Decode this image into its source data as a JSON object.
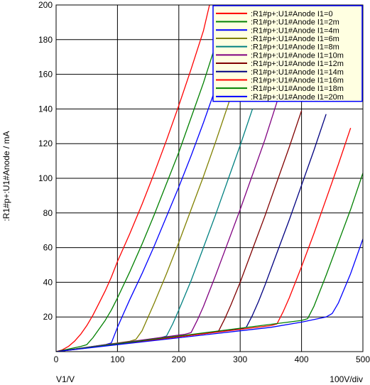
{
  "chart_data": {
    "type": "line",
    "ylabel": ":R1#p+:U1#Anode / mA",
    "xlabel": "V1/V",
    "xscale_label": "100V/div",
    "xlim": [
      0,
      500
    ],
    "ylim": [
      0,
      200
    ],
    "xticks": [
      0,
      100,
      200,
      300,
      400,
      500
    ],
    "yticks": [
      20,
      40,
      60,
      80,
      100,
      120,
      140,
      160,
      180,
      200
    ],
    "grid": true,
    "legend_position": "top-right",
    "colors": {
      "background": "#ffffff",
      "grid": "#000000",
      "legend_bg": "#ffffe1",
      "legend_border": "#0000ff"
    },
    "series": [
      {
        "name": ":R1#p+:U1#Anode I1=0",
        "color": "#ff0000",
        "x": [
          0,
          10,
          20,
          30,
          40,
          50,
          60,
          70,
          80,
          90,
          100,
          120,
          140,
          160,
          180,
          200,
          220,
          240,
          250
        ],
        "y": [
          0,
          1,
          3,
          6,
          10,
          15,
          21,
          28,
          35,
          43,
          52,
          68,
          85,
          103,
          122,
          142,
          163,
          185,
          200
        ]
      },
      {
        "name": ":R1#p+:U1#Anode I1=2m",
        "color": "#008000",
        "x": [
          0,
          40,
          50,
          60,
          70,
          80,
          90,
          100,
          120,
          140,
          160,
          180,
          200,
          220,
          240,
          260,
          280,
          290
        ],
        "y": [
          0,
          3,
          4,
          8,
          13,
          18,
          24,
          31,
          46,
          62,
          79,
          97,
          115,
          135,
          155,
          177,
          200,
          211
        ]
      },
      {
        "name": ":R1#p+:U1#Anode I1=4m",
        "color": "#0000ff",
        "x": [
          0,
          80,
          90,
          100,
          110,
          120,
          140,
          160,
          180,
          200,
          220,
          240,
          260,
          280,
          300,
          320
        ],
        "y": [
          0,
          4,
          5,
          14,
          22,
          30,
          45,
          61,
          78,
          95,
          113,
          132,
          152,
          172,
          193,
          210
        ]
      },
      {
        "name": ":R1#p+:U1#Anode I1=6m",
        "color": "#808000",
        "x": [
          0,
          120,
          130,
          140,
          150,
          160,
          180,
          200,
          220,
          240,
          260,
          280,
          300
        ],
        "y": [
          0,
          6,
          7,
          12,
          20,
          28,
          45,
          63,
          82,
          101,
          121,
          142,
          164
        ]
      },
      {
        "name": ":R1#p+:U1#Anode I1=8m",
        "color": "#008080",
        "x": [
          0,
          170,
          180,
          190,
          200,
          220,
          240,
          260,
          280,
          300,
          320
        ],
        "y": [
          0,
          8,
          9,
          16,
          24,
          41,
          60,
          79,
          99,
          119,
          140
        ]
      },
      {
        "name": ":R1#p+:U1#Anode I1=10m",
        "color": "#800080",
        "x": [
          0,
          210,
          220,
          230,
          240,
          260,
          280,
          300,
          320,
          340,
          360
        ],
        "y": [
          0,
          10,
          11,
          18,
          26,
          44,
          63,
          82,
          102,
          122,
          144
        ]
      },
      {
        "name": ":R1#p+:U1#Anode I1=12m",
        "color": "#800000",
        "x": [
          0,
          255,
          265,
          275,
          285,
          300,
          320,
          340,
          360,
          380,
          400
        ],
        "y": [
          0,
          11,
          12,
          19,
          27,
          40,
          59,
          78,
          98,
          118,
          139
        ]
      },
      {
        "name": ":R1#p+:U1#Anode I1=14m",
        "color": "#000080",
        "x": [
          0,
          300,
          310,
          320,
          330,
          340,
          360,
          380,
          400,
          420,
          440
        ],
        "y": [
          0,
          13,
          14,
          21,
          29,
          38,
          57,
          76,
          96,
          116,
          137
        ]
      },
      {
        "name": ":R1#p+:U1#Anode I1=16m",
        "color": "#ff0000",
        "x": [
          0,
          350,
          360,
          370,
          380,
          400,
          420,
          440,
          460,
          480
        ],
        "y": [
          0,
          15,
          16,
          23,
          31,
          49,
          68,
          88,
          108,
          129
        ]
      },
      {
        "name": ":R1#p+:U1#Anode I1=18m",
        "color": "#008000",
        "x": [
          0,
          400,
          410,
          420,
          440,
          460,
          480,
          500
        ],
        "y": [
          0,
          18,
          19,
          26,
          44,
          63,
          82,
          103
        ]
      },
      {
        "name": ":R1#p+:U1#Anode I1=20m",
        "color": "#0000ff",
        "x": [
          0,
          50,
          100,
          150,
          200,
          250,
          300,
          350,
          400,
          440,
          445,
          450,
          460,
          480,
          500
        ],
        "y": [
          0,
          2,
          4,
          6,
          8,
          10,
          12,
          14,
          17,
          20,
          21,
          22,
          28,
          45,
          65
        ]
      }
    ]
  }
}
